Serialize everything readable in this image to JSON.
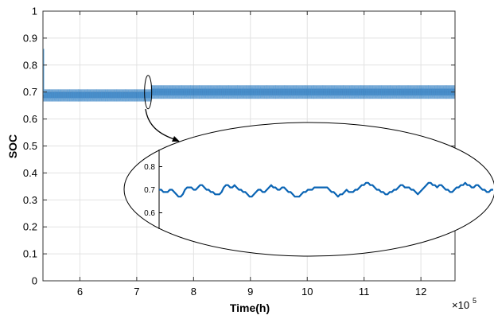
{
  "chart_data": [
    {
      "type": "line",
      "xlabel": "Time(h)",
      "ylabel": "SOC",
      "x_exponent_label": "×10",
      "x_exponent_power": "5",
      "xlim": [
        5.35,
        12.6
      ],
      "ylim": [
        0,
        1
      ],
      "x_ticks": [
        6,
        7,
        8,
        9,
        10,
        11,
        12
      ],
      "x_tick_labels": [
        "6",
        "7",
        "8",
        "9",
        "10",
        "11",
        "12"
      ],
      "y_ticks": [
        0,
        0.1,
        0.2,
        0.3,
        0.4,
        0.5,
        0.6,
        0.7,
        0.8,
        0.9,
        1
      ],
      "y_tick_labels": [
        "0",
        "0.1",
        "0.2",
        "0.3",
        "0.4",
        "0.5",
        "0.6",
        "0.7",
        "0.8",
        "0.9",
        "1"
      ],
      "grid": true,
      "series": [
        {
          "color": "#0a64b4",
          "initial_value": 0.86,
          "segments": [
            {
              "x_start": 5.35,
              "x_end": 7.25,
              "mean": 0.69,
              "band_low": 0.665,
              "band_high": 0.71
            },
            {
              "x_start": 7.25,
              "x_end": 12.6,
              "mean": 0.7,
              "band_low": 0.675,
              "band_high": 0.725
            }
          ]
        }
      ],
      "zoom_marker": {
        "x": 7.2,
        "y": 0.7
      }
    },
    {
      "type": "line",
      "role": "zoomed-inset",
      "ylim": [
        0.55,
        0.85
      ],
      "y_ticks": [
        0.6,
        0.7,
        0.8
      ],
      "y_tick_labels": [
        "0.6",
        "0.7",
        "0.8"
      ],
      "series": [
        {
          "color": "#0a64b4",
          "y": [
            0.7,
            0.7,
            0.69,
            0.69,
            0.69,
            0.7,
            0.7,
            0.69,
            0.68,
            0.67,
            0.67,
            0.68,
            0.7,
            0.71,
            0.71,
            0.71,
            0.7,
            0.7,
            0.71,
            0.72,
            0.72,
            0.71,
            0.7,
            0.7,
            0.69,
            0.69,
            0.68,
            0.68,
            0.68,
            0.69,
            0.71,
            0.72,
            0.72,
            0.71,
            0.71,
            0.72,
            0.71,
            0.7,
            0.7,
            0.69,
            0.69,
            0.68,
            0.67,
            0.67,
            0.68,
            0.69,
            0.7,
            0.7,
            0.69,
            0.69,
            0.7,
            0.71,
            0.72,
            0.71,
            0.71,
            0.7,
            0.7,
            0.71,
            0.71,
            0.7,
            0.69,
            0.69,
            0.68,
            0.67,
            0.67,
            0.67,
            0.68,
            0.69,
            0.69,
            0.7,
            0.7,
            0.7,
            0.71,
            0.71,
            0.71,
            0.71,
            0.71,
            0.71,
            0.71,
            0.7,
            0.69,
            0.69,
            0.68,
            0.67,
            0.68,
            0.68,
            0.69,
            0.7,
            0.69,
            0.69,
            0.69,
            0.7,
            0.7,
            0.71,
            0.72,
            0.72,
            0.73,
            0.73,
            0.72,
            0.72,
            0.71,
            0.7,
            0.7,
            0.69,
            0.69,
            0.68,
            0.68,
            0.69,
            0.69,
            0.7,
            0.7,
            0.71,
            0.72,
            0.72,
            0.71,
            0.71,
            0.71,
            0.7,
            0.7,
            0.69,
            0.68,
            0.69,
            0.7,
            0.71,
            0.72,
            0.73,
            0.73,
            0.72,
            0.72,
            0.71,
            0.72,
            0.72,
            0.71,
            0.7,
            0.7,
            0.69,
            0.69,
            0.7,
            0.71,
            0.71,
            0.72,
            0.72,
            0.73,
            0.72,
            0.72,
            0.71,
            0.71,
            0.72,
            0.72,
            0.71,
            0.7,
            0.7,
            0.69,
            0.69,
            0.7,
            0.7
          ]
        }
      ]
    }
  ]
}
